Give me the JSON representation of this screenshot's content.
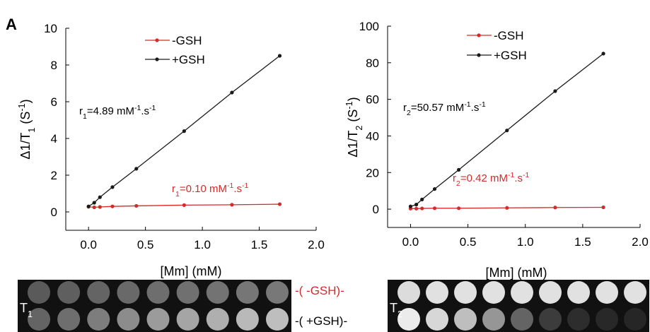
{
  "panel_label": "A",
  "chart_data": [
    {
      "type": "line",
      "x_label": "[Mm] (mM)",
      "y_label_parts": [
        "Δ1/T",
        "1",
        " (S",
        "-1",
        ")"
      ],
      "x": [
        0,
        0.05,
        0.1,
        0.21,
        0.42,
        0.84,
        1.26,
        1.68
      ],
      "series": [
        {
          "name": "-GSH",
          "color": "#d42a2a",
          "values": [
            0.28,
            0.25,
            0.27,
            0.3,
            0.33,
            0.37,
            0.39,
            0.42
          ]
        },
        {
          "name": "+GSH",
          "color": "#1a1a1a",
          "values": [
            0.3,
            0.5,
            0.8,
            1.35,
            2.35,
            4.4,
            6.5,
            8.5
          ]
        }
      ],
      "xlim": [
        -0.2,
        2.0
      ],
      "xticks": [
        {
          "value": 0,
          "label": "0.0"
        },
        {
          "value": 0.5,
          "label": "0.5"
        },
        {
          "value": 1,
          "label": "1.0"
        },
        {
          "value": 1.5,
          "label": "1.5"
        },
        {
          "value": 2,
          "label": "2.0"
        }
      ],
      "ylim": [
        -1,
        10
      ],
      "yticks": [
        0,
        2,
        4,
        6,
        8,
        10
      ],
      "legend": "upper center",
      "annotations": [
        {
          "parts": [
            "r",
            "1",
            "=4.89 mM",
            "-1",
            ".s",
            "-1"
          ],
          "color": "#000000"
        },
        {
          "parts": [
            "r",
            "1",
            "=0.10 mM",
            "-1",
            ".s",
            "-1"
          ],
          "color": "#d42a2a"
        }
      ]
    },
    {
      "type": "line",
      "x_label": "[Mm] (mM)",
      "y_label_parts": [
        "Δ1/T",
        "2",
        " (S",
        "-1",
        ")"
      ],
      "x": [
        0,
        0.05,
        0.1,
        0.21,
        0.42,
        0.84,
        1.26,
        1.68
      ],
      "series": [
        {
          "name": "-GSH",
          "color": "#d42a2a",
          "values": [
            0.3,
            0.3,
            0.4,
            0.5,
            0.5,
            0.7,
            0.9,
            1.0
          ]
        },
        {
          "name": "+GSH",
          "color": "#1a1a1a",
          "values": [
            1.5,
            2.5,
            5.3,
            11,
            21.5,
            43,
            64.5,
            85
          ]
        }
      ],
      "xlim": [
        -0.2,
        2.0
      ],
      "xticks": [
        {
          "value": 0,
          "label": "0.0"
        },
        {
          "value": 0.5,
          "label": "0.5"
        },
        {
          "value": 1,
          "label": "1.0"
        },
        {
          "value": 1.5,
          "label": "1.5"
        },
        {
          "value": 2,
          "label": "2.0"
        }
      ],
      "ylim": [
        -10,
        100
      ],
      "yticks": [
        0,
        20,
        40,
        60,
        80,
        100
      ],
      "legend": "upper center",
      "annotations": [
        {
          "parts": [
            "r",
            "2",
            "=50.57 mM",
            "-1",
            ".s",
            "-1"
          ],
          "color": "#000000"
        },
        {
          "parts": [
            "r",
            "2",
            "=0.42 mM",
            "-1",
            ".s",
            "-1"
          ],
          "color": "#d42a2a"
        }
      ]
    }
  ],
  "images": [
    {
      "label_parts": [
        "T",
        "1"
      ]
    },
    {
      "label_parts": [
        "T",
        "2"
      ]
    }
  ],
  "row_labels": [
    "-( -GSH)-",
    "-( +GSH)-"
  ]
}
